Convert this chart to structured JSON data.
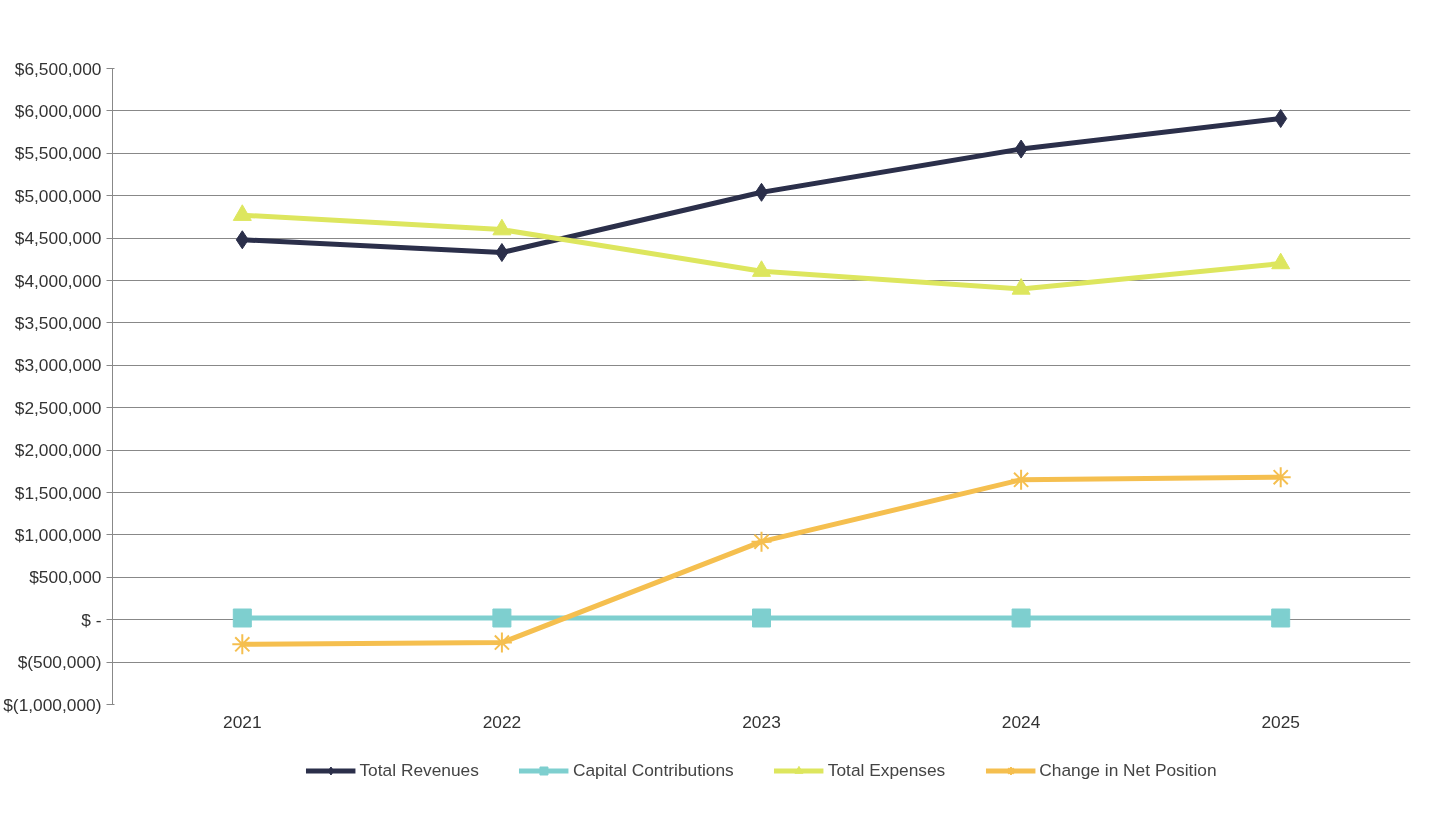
{
  "chart_data": {
    "type": "line",
    "categories": [
      "2021",
      "2022",
      "2023",
      "2024",
      "2025"
    ],
    "series": [
      {
        "name": "Total Revenues",
        "color": "#2b2f4a",
        "marker": "diamond",
        "values": [
          4480000,
          4330000,
          5040000,
          5550000,
          5910000
        ]
      },
      {
        "name": "Capital Contributions",
        "color": "#7ecfcf",
        "marker": "square",
        "values": [
          20000,
          20000,
          20000,
          20000,
          20000
        ]
      },
      {
        "name": "Total Expenses",
        "color": "#dde65e",
        "marker": "triangle",
        "values": [
          4770000,
          4600000,
          4110000,
          3900000,
          4200000
        ]
      },
      {
        "name": "Change in Net Position",
        "color": "#f5bf4f",
        "marker": "cross",
        "values": [
          -290000,
          -270000,
          920000,
          1650000,
          1680000
        ]
      }
    ],
    "ylim": [
      -1000000,
      6500000
    ],
    "yticks": [
      {
        "value": -1000000,
        "label": "$(1,000,000)"
      },
      {
        "value": -500000,
        "label": "$(500,000)"
      },
      {
        "value": 0,
        "label": "$ -"
      },
      {
        "value": 500000,
        "label": "$500,000"
      },
      {
        "value": 1000000,
        "label": "$1,000,000"
      },
      {
        "value": 1500000,
        "label": "$1,500,000"
      },
      {
        "value": 2000000,
        "label": "$2,000,000"
      },
      {
        "value": 2500000,
        "label": "$2,500,000"
      },
      {
        "value": 3000000,
        "label": "$3,000,000"
      },
      {
        "value": 3500000,
        "label": "$3,500,000"
      },
      {
        "value": 4000000,
        "label": "$4,000,000"
      },
      {
        "value": 4500000,
        "label": "$4,500,000"
      },
      {
        "value": 5000000,
        "label": "$5,000,000"
      },
      {
        "value": 5500000,
        "label": "$5,500,000"
      },
      {
        "value": 6000000,
        "label": "$6,000,000"
      },
      {
        "value": 6500000,
        "label": "$6,500,000"
      }
    ],
    "grid": "y",
    "legend": "bottom",
    "line_style": "solid"
  }
}
